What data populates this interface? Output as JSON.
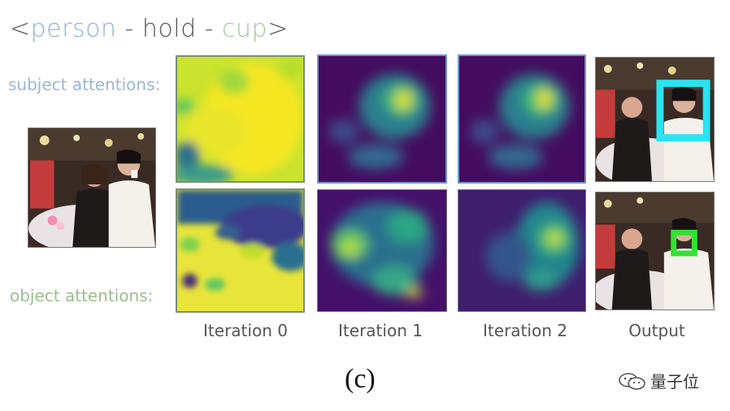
{
  "title": {
    "open": "<",
    "subject": "person",
    "sep1": " - hold - ",
    "object": "cup",
    "close": ">"
  },
  "row_labels": {
    "subject": "subject attentions:",
    "object": "object attentions:"
  },
  "columns": [
    "Iteration 0",
    "Iteration 1",
    "Iteration 2",
    "Output"
  ],
  "figure_label": "(c)",
  "watermark": {
    "icon": "wechat-icon",
    "text": "量子位"
  },
  "colors": {
    "subject": "#8fb1d9",
    "object": "#a8c79a",
    "subject_box": "#29e3f0",
    "object_box": "#31e233",
    "viridis_low": "#440154",
    "viridis_mid": "#21918c",
    "viridis_high": "#fde725"
  }
}
